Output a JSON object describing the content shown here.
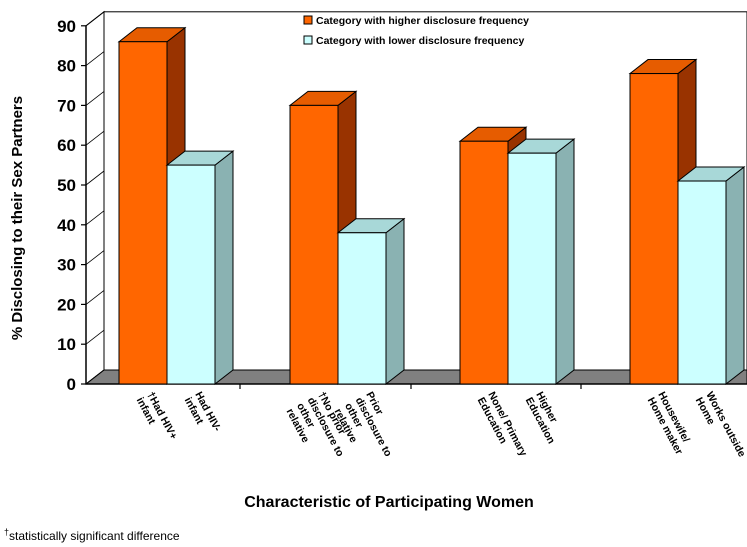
{
  "chart_data": {
    "type": "bar",
    "title": "",
    "xlabel": "Characteristic of Participating Women",
    "ylabel": "% Disclosing to their Sex Partners",
    "ylim": [
      0,
      90
    ],
    "yticks": [
      0,
      10,
      20,
      30,
      40,
      50,
      60,
      70,
      80,
      90
    ],
    "legend_position": "top-right",
    "categories": [
      {
        "high_label": "†Had HIV+ infant",
        "low_label": "Had HIV- infant"
      },
      {
        "high_label": "†No prior disclosure to other relative",
        "low_label": "Prior disclosure to other relative"
      },
      {
        "high_label": "None/ Primary Education",
        "low_label": "Higher Education"
      },
      {
        "high_label": "Housewife/ Home maker",
        "low_label": "Works outside Home"
      }
    ],
    "series": [
      {
        "name": "Category with higher disclosure frequency",
        "color": "#FF6600",
        "values": [
          86,
          70,
          61,
          78
        ]
      },
      {
        "name": "Category with lower disclosure frequency",
        "color": "#CCFFFF",
        "values": [
          55,
          38,
          58,
          51
        ]
      }
    ],
    "footnote_mark": "†",
    "footnote_text": "statistically significant difference"
  }
}
